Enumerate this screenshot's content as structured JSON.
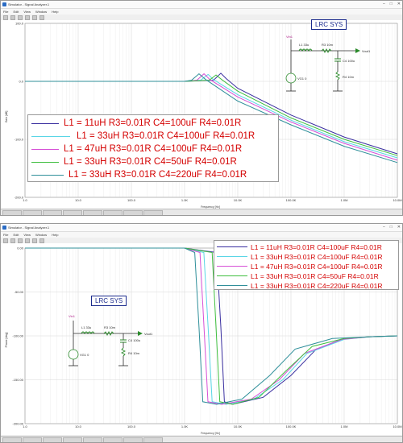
{
  "window_top": {
    "title": "Simulator - Signal Analyzer.1",
    "menu": [
      "File",
      "Edit",
      "View",
      "Window",
      "Help"
    ],
    "xlabel": "Frequency [Hz]",
    "ylabel": "Gain [dB]",
    "y_ticks": [
      "100.0",
      "0.0",
      "-100.0",
      "-200.0"
    ],
    "x_ticks": [
      "1.0",
      "10.0",
      "100.0",
      "1.0K",
      "10.0K",
      "100.0K",
      "1.0M",
      "10.0M"
    ]
  },
  "window_bottom": {
    "title": "Simulator - Signal Analyzer.1",
    "menu": [
      "File",
      "Edit",
      "View",
      "Window",
      "Help"
    ],
    "xlabel": "Frequency [Hz]",
    "ylabel": "Phase [deg]",
    "y_ticks": [
      "0.00",
      "-50.00",
      "-100.00",
      "-150.00",
      "-200.00"
    ],
    "x_ticks": [
      "1.0",
      "10.0",
      "100.0",
      "1.0K",
      "10.0K",
      "100.0K",
      "1.0M",
      "10.0M"
    ]
  },
  "lrc_label": "LRC SYS",
  "schematic": {
    "probe": "Vin1",
    "inductor": "L1 33u",
    "resistor": "R3 10m",
    "capacitor": "C4 100u",
    "load": "R4 10m",
    "source": "VG1 0",
    "output": "Vout1"
  },
  "legend": [
    "L1 = 11uH R3=0.01R C4=100uF R4=0.01R",
    "L1 = 33uH R3=0.01R C4=100uF R4=0.01R",
    "L1 = 47uH R3=0.01R C4=100uF R4=0.01R",
    "L1 = 33uH R3=0.01R C4=50uF R4=0.01R",
    "L1 = 33uH R3=0.01R C4=220uF R4=0.01R"
  ],
  "colors": {
    "series": [
      "#3a2fa0",
      "#5ad6e6",
      "#d64fd6",
      "#3fbf3f",
      "#2f8f9a"
    ],
    "legend_text": "#d40000",
    "lrc_label": "#1a2a8c",
    "grid": "#e6e6e6"
  },
  "chart_data": [
    {
      "type": "line",
      "xscale": "log",
      "xlabel": "Frequency [Hz]",
      "ylabel": "Gain [dB]",
      "xlim": [
        1,
        10000000
      ],
      "ylim": [
        -200,
        100
      ],
      "grid": true,
      "legend": "bottom-left",
      "series": [
        {
          "name": "L1 = 11uH R3=0.01R C4=100uF R4=0.01R",
          "x": [
            1,
            100,
            1000,
            3500,
            4800,
            6000,
            10000,
            100000,
            1000000,
            10000000
          ],
          "y": [
            0,
            0,
            0,
            2,
            14,
            5,
            -12,
            -58,
            -96,
            -125
          ]
        },
        {
          "name": "L1 = 33uH R3=0.01R C4=100uF R4=0.01R",
          "x": [
            1,
            100,
            1000,
            2000,
            2770,
            3500,
            10000,
            100000,
            1000000,
            10000000
          ],
          "y": [
            0,
            0,
            0,
            2,
            12,
            3,
            -23,
            -67,
            -104,
            -132
          ]
        },
        {
          "name": "L1 = 47uH R3=0.01R C4=100uF R4=0.01R",
          "x": [
            1,
            100,
            1000,
            1700,
            2320,
            3000,
            10000,
            100000,
            1000000,
            10000000
          ],
          "y": [
            0,
            0,
            0,
            2,
            13,
            3,
            -27,
            -70,
            -107,
            -136
          ]
        },
        {
          "name": "L1 = 33uH R3=0.01R C4=50uF R4=0.01R",
          "x": [
            1,
            100,
            1000,
            2900,
            3900,
            5000,
            10000,
            100000,
            1000000,
            10000000
          ],
          "y": [
            0,
            0,
            0,
            2,
            11,
            3,
            -17,
            -63,
            -100,
            -128
          ]
        },
        {
          "name": "L1 = 33uH R3=0.01R C4=220uF R4=0.01R",
          "x": [
            1,
            100,
            1000,
            1350,
            1870,
            2500,
            10000,
            100000,
            1000000,
            10000000
          ],
          "y": [
            0,
            0,
            0,
            2,
            13,
            3,
            -34,
            -75,
            -112,
            -140
          ]
        }
      ]
    },
    {
      "type": "line",
      "xscale": "log",
      "xlabel": "Frequency [Hz]",
      "ylabel": "Phase [deg]",
      "xlim": [
        1,
        10000000
      ],
      "ylim": [
        -200,
        0
      ],
      "grid": true,
      "legend": "top-right",
      "series": [
        {
          "name": "L1 = 11uH R3=0.01R C4=100uF R4=0.01R",
          "x": [
            1,
            1000,
            4000,
            4800,
            5600,
            8000,
            30000,
            100000,
            300000,
            1000000,
            3000000,
            10000000
          ],
          "y": [
            0,
            0,
            -5,
            -90,
            -175,
            -178,
            -170,
            -145,
            -115,
            -103,
            -101,
            -100
          ]
        },
        {
          "name": "L1 = 33uH R3=0.01R C4=100uF R4=0.01R",
          "x": [
            1,
            1000,
            2300,
            2770,
            3300,
            6000,
            20000,
            70000,
            200000,
            1000000,
            3000000,
            10000000
          ],
          "y": [
            0,
            0,
            -5,
            -90,
            -175,
            -178,
            -172,
            -150,
            -120,
            -104,
            -101,
            -100
          ]
        },
        {
          "name": "L1 = 47uH R3=0.01R C4=100uF R4=0.01R",
          "x": [
            1,
            1000,
            1950,
            2320,
            2750,
            5000,
            18000,
            60000,
            180000,
            900000,
            3000000,
            10000000
          ],
          "y": [
            0,
            0,
            -5,
            -90,
            -175,
            -178,
            -172,
            -150,
            -120,
            -104,
            -101,
            -100
          ]
        },
        {
          "name": "L1 = 33uH R3=0.01R C4=50uF R4=0.01R",
          "x": [
            1,
            1000,
            3300,
            3900,
            4600,
            8000,
            25000,
            80000,
            250000,
            1000000,
            3000000,
            10000000
          ],
          "y": [
            0,
            0,
            -5,
            -90,
            -175,
            -178,
            -170,
            -140,
            -112,
            -103,
            -101,
            -100
          ]
        },
        {
          "name": "L1 = 33uH R3=0.01R C4=220uF R4=0.01R",
          "x": [
            1,
            1000,
            1550,
            1870,
            2200,
            4000,
            12000,
            40000,
            120000,
            600000,
            3000000,
            10000000
          ],
          "y": [
            0,
            0,
            -5,
            -90,
            -175,
            -178,
            -172,
            -145,
            -115,
            -103,
            -101,
            -100
          ]
        }
      ]
    }
  ]
}
